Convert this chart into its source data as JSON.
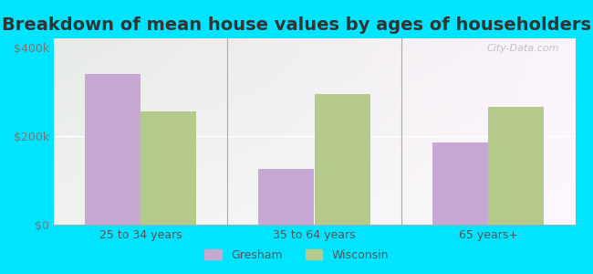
{
  "title": "Breakdown of mean house values by ages of householders",
  "categories": [
    "25 to 34 years",
    "35 to 64 years",
    "65 years+"
  ],
  "gresham_values": [
    340000,
    125000,
    185000
  ],
  "wisconsin_values": [
    255000,
    295000,
    265000
  ],
  "gresham_color": "#c6a8d2",
  "wisconsin_color": "#b5c98a",
  "bar_width": 0.32,
  "ylim": [
    0,
    420000
  ],
  "yticks": [
    0,
    200000,
    400000
  ],
  "ytick_labels": [
    "$0",
    "$200k",
    "$400k"
  ],
  "outer_background": "#00e5ff",
  "title_fontsize": 14,
  "legend_labels": [
    "Gresham",
    "Wisconsin"
  ],
  "watermark": "City-Data.com"
}
